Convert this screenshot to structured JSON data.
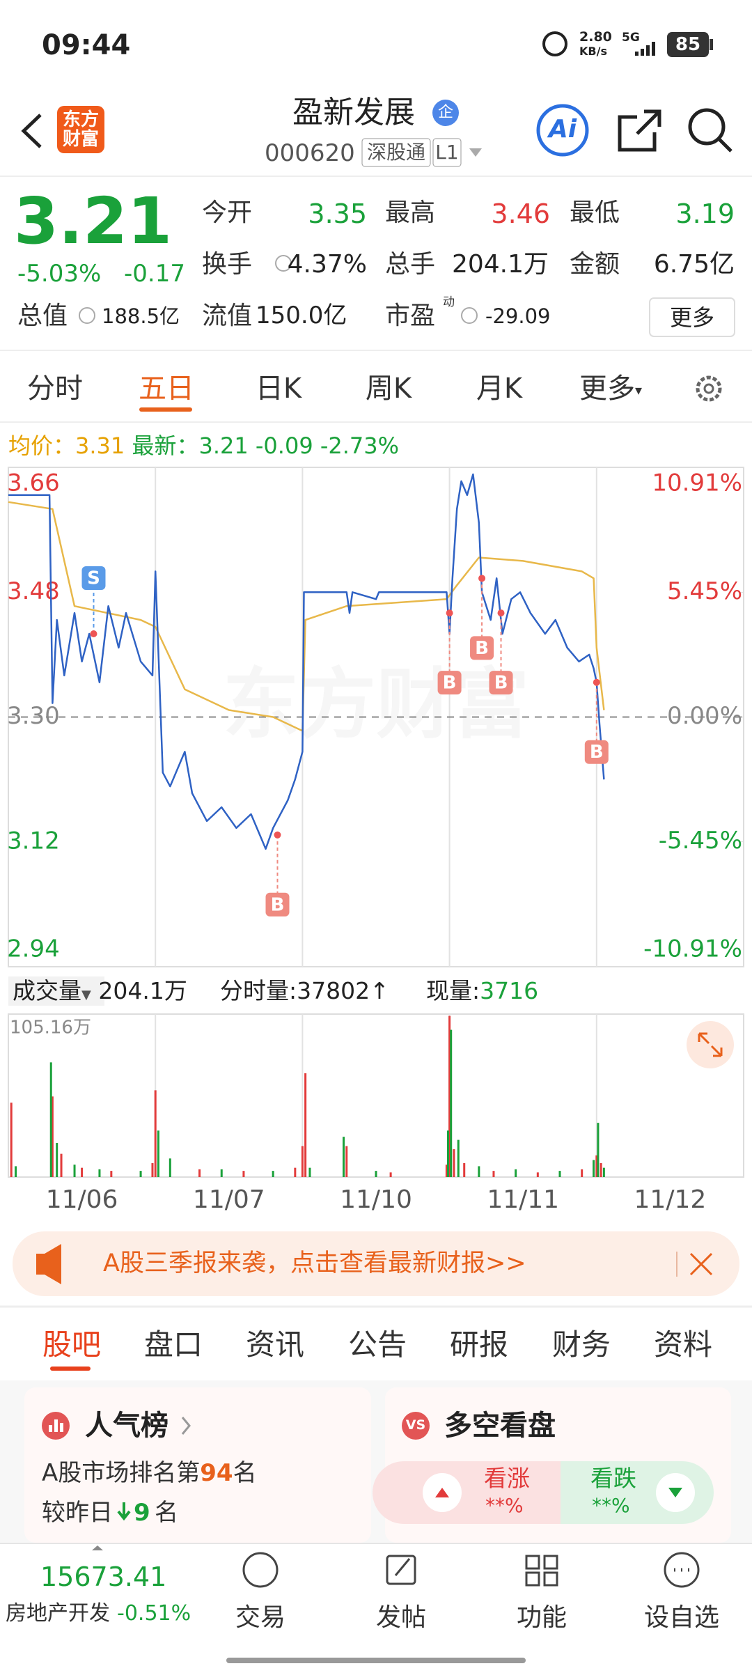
{
  "status_bar": {
    "time": "09:44",
    "net_speed": "2.80",
    "net_unit": "KB/s",
    "network": "5G",
    "battery": "85"
  },
  "header": {
    "logo": "东方财富",
    "title": "盈新发展",
    "badge": "企",
    "code": "000620",
    "tag": "深股通",
    "level": "L1",
    "ai": "Ai"
  },
  "quote": {
    "price": "3.21",
    "change_pct": "-5.03%",
    "change": "-0.17",
    "stats": [
      [
        "今开",
        "3.35"
      ],
      [
        "最高",
        "3.46"
      ],
      [
        "最低",
        "3.19"
      ],
      [
        "换手",
        "4.37%"
      ],
      [
        "总手",
        "204.1万"
      ],
      [
        "金额",
        "6.75亿"
      ]
    ],
    "total_value": {
      "label": "总值",
      "value": "188.5亿"
    },
    "float_value": {
      "label": "流值",
      "value": "150.0亿"
    },
    "pe": {
      "label": "市盈",
      "sup": "动",
      "value": "-29.09"
    },
    "more": "更多"
  },
  "tabs": [
    "分时",
    "五日",
    "日K",
    "周K",
    "月K",
    "更多"
  ],
  "info": {
    "avg_label": "均价：",
    "avg": "3.31",
    "latest_label": "最新：",
    "latest": "3.21",
    "change": "-0.09",
    "change_pct": "-2.73%"
  },
  "chart_data": [
    {
      "type": "line",
      "watermark": "东方财富",
      "categories": [
        "11/06",
        "11/07",
        "11/10",
        "11/11",
        "11/12"
      ],
      "xlim": [
        0,
        5
      ],
      "ylim": [
        2.94,
        3.66
      ],
      "yticks": [
        3.66,
        3.48,
        {
          "value": 3.3,
          "label": "3.30"
        },
        3.12,
        2.94
      ],
      "y2lim": [
        -10.91,
        10.91
      ],
      "y2ticks": [
        {
          "value": 10.91,
          "label": "10.91%"
        },
        {
          "value": 5.45,
          "label": "5.45%"
        },
        {
          "value": 0,
          "label": "0.00%"
        },
        {
          "value": -5.45,
          "label": "-5.45%"
        },
        {
          "value": -10.91,
          "label": "-10.91%"
        }
      ],
      "series": [
        {
          "color": "#2f62c4",
          "x": [
            0,
            0.28,
            0.3,
            0.33,
            0.38,
            0.45,
            0.5,
            0.55,
            0.62,
            0.68,
            0.75,
            0.8,
            0.9,
            0.98,
            1.0,
            1.05,
            1.1,
            1.2,
            1.25,
            1.35,
            1.45,
            1.55,
            1.65,
            1.75,
            1.8,
            1.9,
            1.95,
            2.0,
            2.01,
            2.3,
            2.32,
            2.34,
            2.5,
            2.52,
            2.98,
            3.0,
            3.02,
            3.05,
            3.08,
            3.12,
            3.16,
            3.2,
            3.22,
            3.28,
            3.32,
            3.36,
            3.42,
            3.48,
            3.55,
            3.65,
            3.72,
            3.8,
            3.88,
            3.95,
            3.98,
            4.0,
            4.02,
            4.05
          ],
          "values": [
            3.62,
            3.62,
            3.32,
            3.44,
            3.36,
            3.45,
            3.38,
            3.42,
            3.35,
            3.46,
            3.4,
            3.45,
            3.38,
            3.36,
            3.51,
            3.22,
            3.2,
            3.25,
            3.19,
            3.15,
            3.17,
            3.14,
            3.16,
            3.11,
            3.14,
            3.18,
            3.21,
            3.25,
            3.48,
            3.48,
            3.45,
            3.48,
            3.47,
            3.48,
            3.48,
            3.42,
            3.5,
            3.6,
            3.64,
            3.62,
            3.65,
            3.58,
            3.48,
            3.44,
            3.5,
            3.42,
            3.47,
            3.48,
            3.45,
            3.42,
            3.44,
            3.4,
            3.38,
            3.39,
            3.37,
            3.35,
            3.29,
            3.21
          ]
        },
        {
          "color": "#e8b84a",
          "x": [
            0,
            0.3,
            0.45,
            0.9,
            1.0,
            1.2,
            1.5,
            1.8,
            2.0,
            2.02,
            2.3,
            2.98,
            3.05,
            3.2,
            3.5,
            3.9,
            3.98,
            4.0,
            4.05
          ],
          "values": [
            3.61,
            3.6,
            3.46,
            3.44,
            3.43,
            3.34,
            3.31,
            3.3,
            3.28,
            3.44,
            3.46,
            3.47,
            3.49,
            3.53,
            3.525,
            3.51,
            3.5,
            3.4,
            3.31
          ]
        }
      ],
      "annotations": [
        {
          "x": 0.58,
          "y": 3.42,
          "label": "S"
        },
        {
          "x": 1.83,
          "y": 3.13,
          "label": "B"
        },
        {
          "x": 3.0,
          "y": 3.45,
          "label": "B"
        },
        {
          "x": 3.22,
          "y": 3.5,
          "label": "B"
        },
        {
          "x": 3.35,
          "y": 3.45,
          "label": "B"
        },
        {
          "x": 4.0,
          "y": 3.35,
          "label": "B"
        }
      ]
    },
    {
      "type": "bar",
      "xlim": [
        0,
        5
      ],
      "ylim": [
        0,
        1051600
      ],
      "yticks": [
        {
          "value": 1051600,
          "label": "105.16万"
        }
      ],
      "series": [
        {
          "color": "#e23b3b",
          "x": [
            0.02,
            0.3,
            0.36,
            0.5,
            0.7,
            0.98,
            1.0,
            1.3,
            1.6,
            1.95,
            2.0,
            2.02,
            2.3,
            2.6,
            2.98,
            3.0,
            3.03,
            3.1,
            3.3,
            3.6,
            3.9,
            4.0,
            4.03
          ],
          "values": [
            480000,
            520000,
            150000,
            60000,
            40000,
            90000,
            560000,
            50000,
            40000,
            60000,
            200000,
            670000,
            200000,
            30000,
            80000,
            1040000,
            180000,
            90000,
            40000,
            30000,
            50000,
            140000,
            90000
          ]
        },
        {
          "color": "#1aa13a",
          "x": [
            0.05,
            0.29,
            0.33,
            0.45,
            0.62,
            0.9,
            1.02,
            1.1,
            1.45,
            1.8,
            2.05,
            2.28,
            2.5,
            2.99,
            3.01,
            3.06,
            3.2,
            3.45,
            3.75,
            3.98,
            4.01,
            4.05
          ],
          "values": [
            70000,
            740000,
            220000,
            80000,
            50000,
            40000,
            300000,
            120000,
            50000,
            40000,
            60000,
            260000,
            40000,
            300000,
            950000,
            240000,
            70000,
            50000,
            40000,
            110000,
            350000,
            60000
          ]
        }
      ]
    }
  ],
  "volume_bar": {
    "label": "成交量",
    "total": "204.1万",
    "tick_label": "分时量:",
    "tick": "37802↑",
    "now_label": "现量:",
    "now": "3716"
  },
  "banner": {
    "text": "A股三季报来袭，点击查看最新财报>>"
  },
  "sub_tabs": [
    "股吧",
    "盘口",
    "资讯",
    "公告",
    "研报",
    "财务",
    "资料"
  ],
  "cards": {
    "popularity": {
      "title": "人气榜",
      "rank_prefix": "A股市场排名第",
      "rank": "94",
      "rank_suffix": "名",
      "change_prefix": "较昨日",
      "change": "9",
      "change_suffix": "名"
    },
    "sentiment": {
      "title": "多空看盘",
      "icon": "VS",
      "up": "看涨",
      "up_value": "**%",
      "down": "看跌",
      "down_value": "**%"
    }
  },
  "bottom": {
    "index": "15673.41",
    "sector": "房地产开发",
    "sector_change": "-0.51%",
    "nav": [
      "交易",
      "发帖",
      "功能",
      "设自选"
    ]
  }
}
